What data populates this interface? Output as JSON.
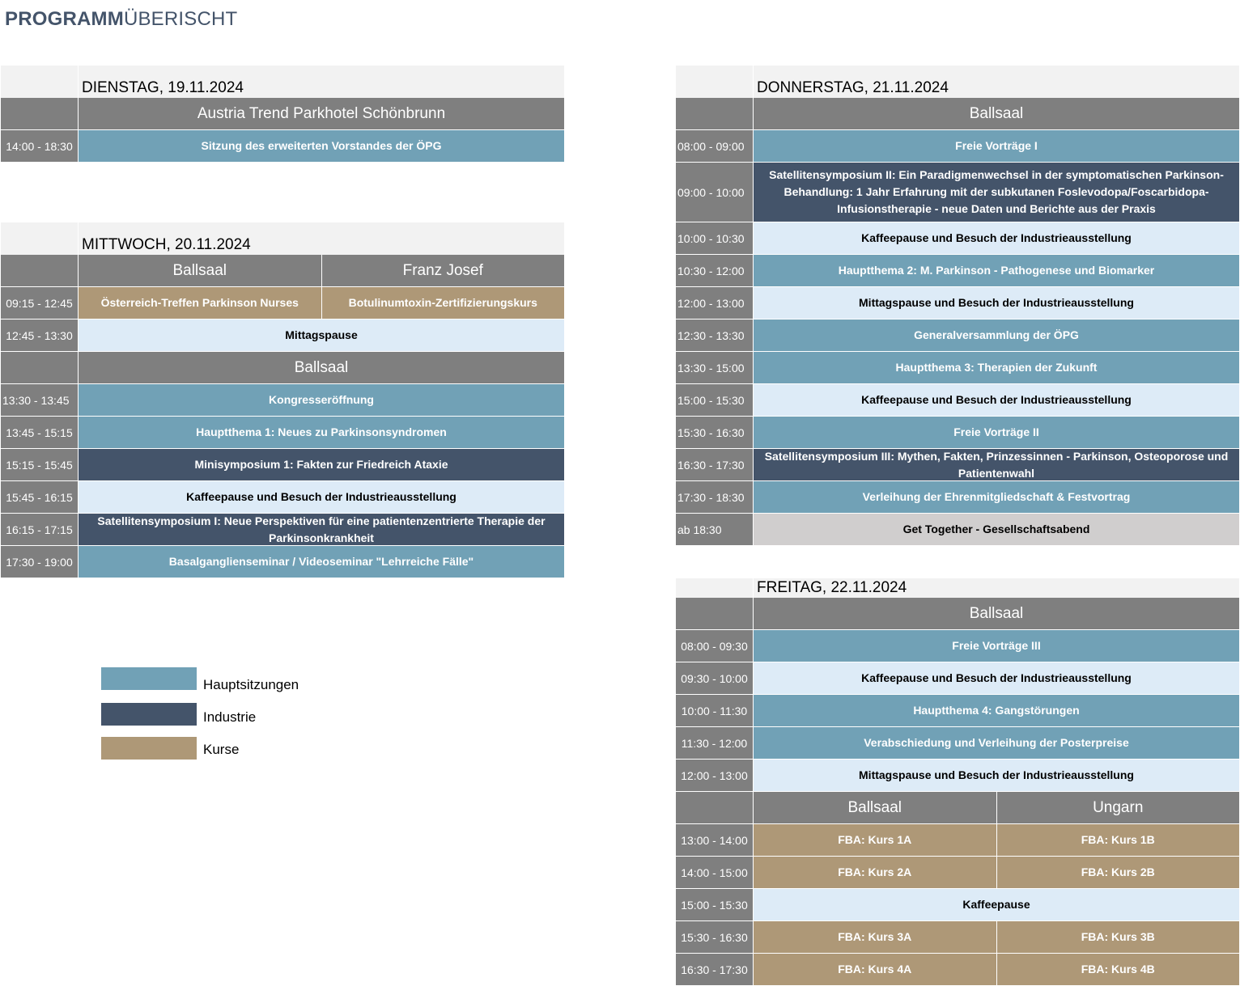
{
  "title_bold": "PROGRAMM",
  "title_rest": "ÜBERISCHT",
  "colors": {
    "haupt": "#71a1b6",
    "industrie": "#44546a",
    "kurs": "#ae9877",
    "pause": "#ddebf7",
    "social": "#d0cece",
    "room": "#7f7f7f"
  },
  "days": [
    {
      "label": "DIENSTAG, 19.11.2024",
      "rows": [
        {
          "type": "room",
          "rooms": [
            "Austria Trend Parkhotel Schönbrunn"
          ]
        },
        {
          "type": "session",
          "time": "14:00 - 18:30",
          "cells": [
            {
              "text": "Sitzung des erweiterten Vorstandes der ÖPG",
              "cat": "haupt"
            }
          ]
        }
      ]
    },
    {
      "label": "MITTWOCH, 20.11.2024",
      "rows": [
        {
          "type": "room",
          "rooms": [
            "Ballsaal",
            "Franz Josef"
          ]
        },
        {
          "type": "session",
          "time": "09:15 - 12:45",
          "cells": [
            {
              "text": "Österreich-Treffen Parkinson Nurses",
              "cat": "kurs"
            },
            {
              "text": "Botulinumtoxin-Zertifizierungskurs",
              "cat": "kurs"
            }
          ]
        },
        {
          "type": "session",
          "time": "12:45 - 13:30",
          "cells": [
            {
              "text": "Mittagspause",
              "cat": "pause"
            }
          ]
        },
        {
          "type": "room",
          "rooms": [
            "Ballsaal"
          ]
        },
        {
          "type": "session",
          "time": "13:30 - 13:45",
          "cells": [
            {
              "text": "Kongresseröffnung",
              "cat": "haupt"
            }
          ]
        },
        {
          "type": "session",
          "time": "13:45 - 15:15",
          "cells": [
            {
              "text": "Hauptthema 1: Neues zu Parkinsonsyndromen",
              "cat": "haupt"
            }
          ]
        },
        {
          "type": "session",
          "time": "15:15 - 15:45",
          "cells": [
            {
              "text": "Minisymposium 1: Fakten zur Friedreich Ataxie",
              "cat": "industrie"
            }
          ]
        },
        {
          "type": "session",
          "time": "15:45 - 16:15",
          "cells": [
            {
              "text": "Kaffeepause und Besuch der Industrieausstellung",
              "cat": "pause"
            }
          ]
        },
        {
          "type": "session",
          "time": "16:15 - 17:15",
          "cells": [
            {
              "text": "Satellitensymposium I: Neue Perspektiven für eine patientenzentrierte Therapie der Parkinsonkrankheit",
              "cat": "industrie"
            }
          ]
        },
        {
          "type": "session",
          "time": "17:30 - 19:00",
          "cells": [
            {
              "text": "Basalganglienseminar / Videoseminar \"Lehrreiche Fälle\"",
              "cat": "haupt"
            }
          ]
        }
      ]
    },
    {
      "label": "DONNERSTAG, 21.11.2024",
      "rows": [
        {
          "type": "room",
          "rooms": [
            "Ballsaal"
          ]
        },
        {
          "type": "session",
          "time": "08:00 - 09:00",
          "cells": [
            {
              "text": "Freie Vorträge I",
              "cat": "haupt"
            }
          ]
        },
        {
          "type": "session",
          "time": "09:00 - 10:00",
          "cells": [
            {
              "text": "Satellitensymposium II: Ein Paradigmenwechsel in der symptomatischen Parkinson-Behandlung: 1 Jahr Erfahrung mit der subkutanen Foslevodopa/Foscarbidopa-Infusionstherapie - neue Daten und Berichte aus der Praxis",
              "cat": "industrie"
            }
          ]
        },
        {
          "type": "session",
          "time": "10:00 - 10:30",
          "cells": [
            {
              "text": "Kaffeepause und Besuch der Industrieausstellung",
              "cat": "pause"
            }
          ]
        },
        {
          "type": "session",
          "time": "10:30 - 12:00",
          "cells": [
            {
              "text": "Hauptthema 2: M. Parkinson - Pathogenese und Biomarker",
              "cat": "haupt"
            }
          ]
        },
        {
          "type": "session",
          "time": "12:00 - 13:00",
          "cells": [
            {
              "text": "Mittagspause und Besuch der Industrieausstellung",
              "cat": "pause"
            }
          ]
        },
        {
          "type": "session",
          "time": "12:30 - 13:30",
          "cells": [
            {
              "text": "Generalversammlung der ÖPG",
              "cat": "haupt"
            }
          ]
        },
        {
          "type": "session",
          "time": "13:30 - 15:00",
          "cells": [
            {
              "text": "Hauptthema 3: Therapien der Zukunft",
              "cat": "haupt"
            }
          ]
        },
        {
          "type": "session",
          "time": "15:00 - 15:30",
          "cells": [
            {
              "text": "Kaffeepause und Besuch der Industrieausstellung",
              "cat": "pause"
            }
          ]
        },
        {
          "type": "session",
          "time": "15:30 - 16:30",
          "cells": [
            {
              "text": "Freie Vorträge II",
              "cat": "haupt"
            }
          ]
        },
        {
          "type": "session",
          "time": "16:30 - 17:30",
          "cells": [
            {
              "text": "Satellitensymposium III: Mythen, Fakten, Prinzessinnen - Parkinson, Osteoporose und Patientenwahl",
              "cat": "industrie"
            }
          ]
        },
        {
          "type": "session",
          "time": "17:30 - 18:30",
          "cells": [
            {
              "text": "Verleihung der Ehrenmitgliedschaft & Festvortrag",
              "cat": "haupt"
            }
          ]
        },
        {
          "type": "session",
          "time": "ab 18:30",
          "cells": [
            {
              "text": "Get Together - Gesellschaftsabend",
              "cat": "social"
            }
          ]
        }
      ]
    },
    {
      "label": "FREITAG, 22.11.2024",
      "rows": [
        {
          "type": "room",
          "rooms": [
            "Ballsaal"
          ]
        },
        {
          "type": "session",
          "time": "08:00 - 09:30",
          "cells": [
            {
              "text": "Freie Vorträge III",
              "cat": "haupt"
            }
          ]
        },
        {
          "type": "session",
          "time": "09:30 - 10:00",
          "cells": [
            {
              "text": "Kaffeepause und Besuch der Industrieausstellung",
              "cat": "pause"
            }
          ]
        },
        {
          "type": "session",
          "time": "10:00 - 11:30",
          "cells": [
            {
              "text": "Hauptthema 4: Gangstörungen",
              "cat": "haupt"
            }
          ]
        },
        {
          "type": "session",
          "time": "11:30 - 12:00",
          "cells": [
            {
              "text": "Verabschiedung und Verleihung der Posterpreise",
              "cat": "haupt"
            }
          ]
        },
        {
          "type": "session",
          "time": "12:00 - 13:00",
          "cells": [
            {
              "text": "Mittagspause und Besuch der Industrieausstellung",
              "cat": "pause"
            }
          ]
        },
        {
          "type": "room",
          "rooms": [
            "Ballsaal",
            "Ungarn"
          ]
        },
        {
          "type": "session",
          "time": "13:00 - 14:00",
          "cells": [
            {
              "text": "FBA: Kurs 1A",
              "cat": "kurs"
            },
            {
              "text": "FBA: Kurs 1B",
              "cat": "kurs"
            }
          ]
        },
        {
          "type": "session",
          "time": "14:00 - 15:00",
          "cells": [
            {
              "text": "FBA: Kurs 2A",
              "cat": "kurs"
            },
            {
              "text": "FBA: Kurs 2B",
              "cat": "kurs"
            }
          ]
        },
        {
          "type": "session",
          "time": "15:00 - 15:30",
          "cells": [
            {
              "text": "Kaffeepause",
              "cat": "pause"
            }
          ]
        },
        {
          "type": "session",
          "time": "15:30 - 16:30",
          "cells": [
            {
              "text": "FBA: Kurs 3A",
              "cat": "kurs"
            },
            {
              "text": "FBA: Kurs 3B",
              "cat": "kurs"
            }
          ]
        },
        {
          "type": "session",
          "time": "16:30 - 17:30",
          "cells": [
            {
              "text": "FBA: Kurs 4A",
              "cat": "kurs"
            },
            {
              "text": "FBA: Kurs 4B",
              "cat": "kurs"
            }
          ]
        }
      ]
    }
  ],
  "legend": [
    {
      "label": "Hauptsitzungen",
      "cat": "haupt"
    },
    {
      "label": "Industrie",
      "cat": "industrie"
    },
    {
      "label": "Kurse",
      "cat": "kurs"
    }
  ]
}
